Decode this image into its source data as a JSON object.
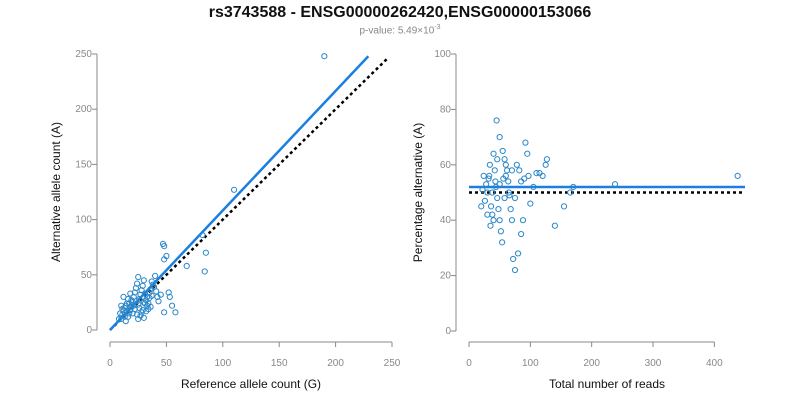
{
  "title": "rs3743588 - ENSG00000262420,ENSG00000153066",
  "subtitle": {
    "prefix": "p-value: 5.49×10",
    "exponent": "-3"
  },
  "colors": {
    "fit": "#1a7fe0",
    "points": "#2a86c8",
    "reference": "#000000",
    "axis": "#888888"
  },
  "chart_data": [
    {
      "type": "scatter",
      "xlabel": "Reference allele count (G)",
      "ylabel": "Alternative allele count (A)",
      "xlim": [
        0,
        250
      ],
      "ylim": [
        0,
        250
      ],
      "xticks": [
        0,
        50,
        100,
        150,
        200,
        250
      ],
      "yticks": [
        0,
        50,
        100,
        150,
        200,
        250
      ],
      "grid": false,
      "reference_line": {
        "style": "dotted",
        "points": [
          [
            0,
            0
          ],
          [
            247,
            247
          ]
        ]
      },
      "fit_line": {
        "style": "solid",
        "points": [
          [
            0,
            0
          ],
          [
            229,
            248
          ]
        ]
      },
      "points": [
        [
          190,
          248
        ],
        [
          110,
          127
        ],
        [
          82,
          86
        ],
        [
          85,
          70
        ],
        [
          84,
          53
        ],
        [
          68,
          58
        ],
        [
          47,
          78
        ],
        [
          48,
          76
        ],
        [
          48,
          64
        ],
        [
          50,
          67
        ],
        [
          58,
          16
        ],
        [
          48,
          16
        ],
        [
          10,
          10
        ],
        [
          11,
          14
        ],
        [
          12,
          17
        ],
        [
          13,
          20
        ],
        [
          14,
          22
        ],
        [
          15,
          24
        ],
        [
          16,
          12
        ],
        [
          17,
          15
        ],
        [
          18,
          18
        ],
        [
          19,
          21
        ],
        [
          20,
          25
        ],
        [
          21,
          30
        ],
        [
          22,
          34
        ],
        [
          23,
          38
        ],
        [
          24,
          42
        ],
        [
          25,
          48
        ],
        [
          26,
          28
        ],
        [
          27,
          32
        ],
        [
          28,
          36
        ],
        [
          29,
          40
        ],
        [
          30,
          45
        ],
        [
          31,
          33
        ],
        [
          32,
          27
        ],
        [
          33,
          22
        ],
        [
          34,
          19
        ],
        [
          35,
          29
        ],
        [
          36,
          37
        ],
        [
          37,
          44
        ],
        [
          38,
          41
        ],
        [
          39,
          39
        ],
        [
          40,
          49
        ],
        [
          41,
          35
        ],
        [
          42,
          30
        ],
        [
          43,
          26
        ],
        [
          45,
          32
        ],
        [
          12,
          30
        ],
        [
          14,
          8
        ],
        [
          16,
          28
        ],
        [
          18,
          33
        ],
        [
          20,
          15
        ],
        [
          22,
          19
        ],
        [
          24,
          14
        ],
        [
          26,
          20
        ],
        [
          28,
          16
        ],
        [
          30,
          11
        ],
        [
          32,
          17
        ],
        [
          34,
          24
        ],
        [
          36,
          21
        ],
        [
          11,
          19
        ],
        [
          13,
          12
        ],
        [
          15,
          17
        ],
        [
          17,
          24
        ],
        [
          19,
          27
        ],
        [
          21,
          22
        ],
        [
          23,
          26
        ],
        [
          25,
          10
        ],
        [
          27,
          13
        ],
        [
          29,
          18
        ],
        [
          31,
          24
        ],
        [
          33,
          30
        ],
        [
          35,
          34
        ],
        [
          37,
          31
        ],
        [
          9,
          15
        ],
        [
          10,
          22
        ],
        [
          8,
          10
        ],
        [
          53,
          30
        ],
        [
          55,
          22
        ],
        [
          52,
          34
        ],
        [
          30,
          25
        ],
        [
          25,
          23
        ]
      ]
    },
    {
      "type": "scatter",
      "xlabel": "Total number of reads",
      "ylabel": "Percentage alternative (A)",
      "xlim": [
        0,
        450
      ],
      "ylim": [
        0,
        100
      ],
      "xticks": [
        0,
        100,
        200,
        300,
        400
      ],
      "yticks": [
        0,
        20,
        40,
        60,
        80,
        100
      ],
      "grid": false,
      "reference_line": {
        "style": "dotted",
        "y": 50
      },
      "fit_line": {
        "style": "solid",
        "y": 52
      },
      "points": [
        [
          438,
          56
        ],
        [
          238,
          53
        ],
        [
          170,
          52
        ],
        [
          140,
          38
        ],
        [
          155,
          45
        ],
        [
          165,
          50
        ],
        [
          127,
          62
        ],
        [
          125,
          60
        ],
        [
          115,
          57
        ],
        [
          120,
          56
        ],
        [
          110,
          57
        ],
        [
          105,
          52
        ],
        [
          100,
          46
        ],
        [
          97,
          56
        ],
        [
          90,
          55
        ],
        [
          88,
          40
        ],
        [
          85,
          35
        ],
        [
          80,
          28
        ],
        [
          75,
          22
        ],
        [
          72,
          26
        ],
        [
          70,
          40
        ],
        [
          68,
          44
        ],
        [
          65,
          50
        ],
        [
          60,
          60
        ],
        [
          55,
          65
        ],
        [
          50,
          70
        ],
        [
          45,
          76
        ],
        [
          40,
          64
        ],
        [
          42,
          58
        ],
        [
          44,
          52
        ],
        [
          46,
          48
        ],
        [
          48,
          44
        ],
        [
          50,
          40
        ],
        [
          52,
          36
        ],
        [
          54,
          32
        ],
        [
          56,
          55
        ],
        [
          58,
          62
        ],
        [
          62,
          58
        ],
        [
          64,
          54
        ],
        [
          66,
          49
        ],
        [
          30,
          50
        ],
        [
          32,
          55
        ],
        [
          34,
          60
        ],
        [
          36,
          45
        ],
        [
          38,
          42
        ],
        [
          40,
          40
        ],
        [
          28,
          53
        ],
        [
          26,
          47
        ],
        [
          24,
          56
        ],
        [
          22,
          51
        ],
        [
          20,
          45
        ],
        [
          35,
          38
        ],
        [
          78,
          60
        ],
        [
          82,
          58
        ],
        [
          92,
          68
        ],
        [
          95,
          64
        ],
        [
          85,
          54
        ],
        [
          75,
          48
        ],
        [
          70,
          58
        ],
        [
          60,
          56
        ],
        [
          58,
          48
        ],
        [
          50,
          53
        ],
        [
          46,
          62
        ],
        [
          43,
          54
        ],
        [
          38,
          50
        ],
        [
          33,
          56
        ],
        [
          30,
          42
        ]
      ]
    }
  ]
}
